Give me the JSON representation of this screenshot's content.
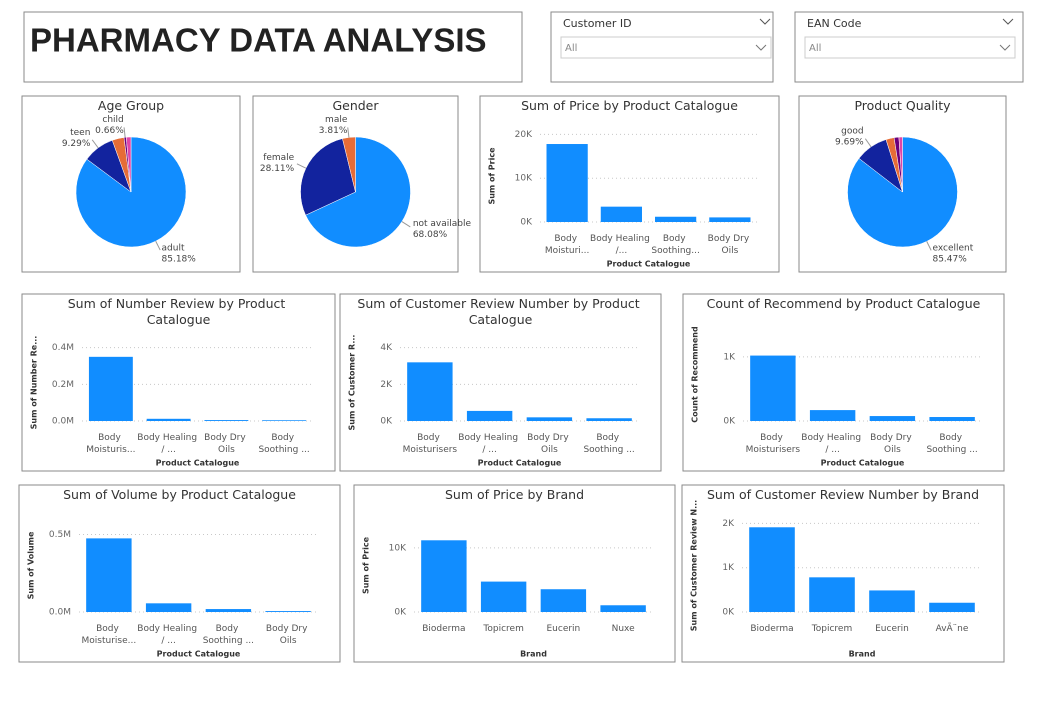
{
  "header": {
    "title": "PHARMACY DATA ANALYSIS"
  },
  "filters": [
    {
      "label": "Customer ID",
      "value": "All"
    },
    {
      "label": "EAN Code",
      "value": "All"
    }
  ],
  "chart_data": [
    {
      "type": "pie",
      "title": "Age Group",
      "categories": [
        "adult",
        "teen",
        null,
        "child",
        null
      ],
      "values": [
        85.18,
        9.29,
        3.5,
        0.66,
        1.37
      ],
      "value_labels": [
        "85.18%",
        "9.29%",
        null,
        "0.66%",
        null
      ],
      "colors": [
        "#118DFF",
        "#12239E",
        "#E66C37",
        "#6B007B",
        "#E044A7"
      ]
    },
    {
      "type": "pie",
      "title": "Gender",
      "categories": [
        "not available",
        "female",
        "male"
      ],
      "values": [
        68.08,
        28.11,
        3.81
      ],
      "value_labels": [
        "68.08%",
        "28.11%",
        "3.81%"
      ],
      "colors": [
        "#118DFF",
        "#12239E",
        "#E66C37"
      ]
    },
    {
      "type": "bar",
      "title": "Sum of Price by Product Catalogue",
      "categories": [
        "Body Moisturi...",
        "Body Healing /...",
        "Body Soothing...",
        "Body Dry Oils"
      ],
      "values": [
        17800,
        3500,
        1200,
        1050
      ],
      "color": "#118DFF",
      "xlabel": "Product Catalogue",
      "ylabel": "Sum of Price",
      "ylim": [
        0,
        21000
      ],
      "yticks": [
        {
          "value": 0,
          "label": "0K"
        },
        {
          "value": 10000,
          "label": "10K"
        },
        {
          "value": 20000,
          "label": "20K"
        }
      ],
      "grid": true
    },
    {
      "type": "pie",
      "title": "Product Quality",
      "categories": [
        "excellent",
        "good",
        null,
        null,
        null
      ],
      "values": [
        85.47,
        9.69,
        2.4,
        1.4,
        1.04
      ],
      "value_labels": [
        "85.47%",
        "9.69%",
        null,
        null,
        null
      ],
      "colors": [
        "#118DFF",
        "#12239E",
        "#E66C37",
        "#6B007B",
        "#E044A7"
      ]
    },
    {
      "type": "bar",
      "title": "Sum of Number Review by Product Catalogue",
      "categories": [
        "Body Moisturis...",
        "Body Healing / ...",
        "Body Dry Oils",
        "Body Soothing ..."
      ],
      "values": [
        350000,
        12000,
        5000,
        4000
      ],
      "color": "#118DFF",
      "xlabel": "Product Catalogue",
      "ylabel": "Sum of Number Re...",
      "ylim": [
        0,
        420000
      ],
      "yticks": [
        {
          "value": 0,
          "label": "0.0M"
        },
        {
          "value": 200000,
          "label": "0.2M"
        },
        {
          "value": 400000,
          "label": "0.4M"
        }
      ],
      "grid": true
    },
    {
      "type": "bar",
      "title": "Sum of Customer Review Number by Product Catalogue",
      "categories": [
        "Body Moisturisers",
        "Body Healing / ...",
        "Body Dry Oils",
        "Body Soothing ..."
      ],
      "values": [
        3200,
        550,
        200,
        150
      ],
      "color": "#118DFF",
      "xlabel": "Product Catalogue",
      "ylabel": "Sum of Customer R...",
      "ylim": [
        0,
        4200
      ],
      "yticks": [
        {
          "value": 0,
          "label": "0K"
        },
        {
          "value": 2000,
          "label": "2K"
        },
        {
          "value": 4000,
          "label": "4K"
        }
      ],
      "grid": true
    },
    {
      "type": "bar",
      "title": "Count of Recommend by Product Catalogue",
      "categories": [
        "Body Moisturisers",
        "Body Healing / ...",
        "Body Dry Oils",
        "Body Soothing ..."
      ],
      "values": [
        1020,
        170,
        77,
        62
      ],
      "color": "#118DFF",
      "xlabel": "Product Catalogue",
      "ylabel": "Count of Recommend",
      "ylim": [
        0,
        1450
      ],
      "yticks": [
        {
          "value": 0,
          "label": "0K"
        },
        {
          "value": 1000,
          "label": "1K"
        }
      ],
      "grid": true
    },
    {
      "type": "bar",
      "title": "Sum of Volume by Product Catalogue",
      "categories": [
        "Body Moisturise...",
        "Body Healing / ...",
        "Body Soothing ...",
        "Body Dry Oils"
      ],
      "values": [
        475000,
        56000,
        19000,
        6000
      ],
      "color": "#118DFF",
      "xlabel": "Product Catalogue",
      "ylabel": "Sum of Volume",
      "ylim": [
        0,
        600000
      ],
      "yticks": [
        {
          "value": 0,
          "label": "0.0M"
        },
        {
          "value": 500000,
          "label": "0.5M"
        }
      ],
      "grid": true
    },
    {
      "type": "bar",
      "title": "Sum of Price by Brand",
      "categories": [
        "Bioderma",
        "Topicrem",
        "Eucerin",
        "Nuxe"
      ],
      "values": [
        11180,
        4740,
        3550,
        1050
      ],
      "color": "#118DFF",
      "xlabel": "Brand",
      "ylabel": "Sum of Price",
      "ylim": [
        0,
        14500
      ],
      "yticks": [
        {
          "value": 0,
          "label": "0K"
        },
        {
          "value": 10000,
          "label": "10K"
        }
      ],
      "grid": true
    },
    {
      "type": "bar",
      "title": "Sum of Customer Review Number by Brand",
      "categories": [
        "Bioderma",
        "Topicrem",
        "Eucerin",
        "AvÃ¨ne"
      ],
      "values": [
        1913,
        783,
        487,
        209
      ],
      "color": "#118DFF",
      "xlabel": "Brand",
      "ylabel": "Sum of Customer Review N...",
      "ylim": [
        0,
        2100
      ],
      "yticks": [
        {
          "value": 0,
          "label": "0K"
        },
        {
          "value": 1000,
          "label": "1K"
        },
        {
          "value": 2000,
          "label": "2K"
        }
      ],
      "grid": true
    }
  ]
}
